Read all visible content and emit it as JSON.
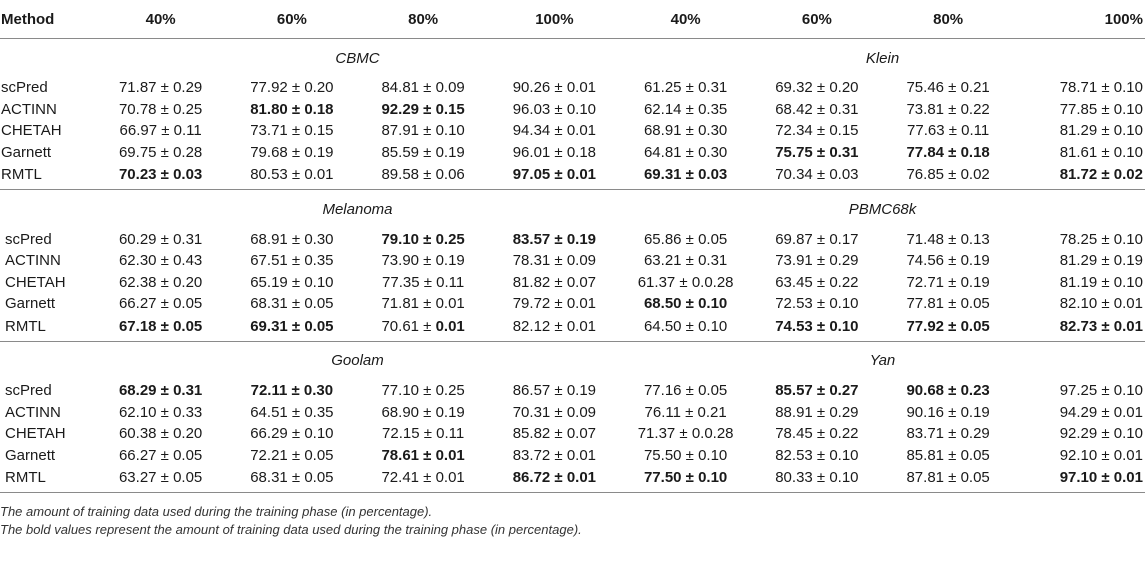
{
  "headers": [
    "Method",
    "40%",
    "60%",
    "80%",
    "100%",
    "40%",
    "60%",
    "80%",
    "100%"
  ],
  "sections": [
    {
      "left_dataset": "CBMC",
      "right_dataset": "Klein",
      "rows": [
        {
          "method": "scPred",
          "cells": [
            {
              "v": "71.87 ± 0.29",
              "b": false
            },
            {
              "v": "77.92 ± 0.20",
              "b": false
            },
            {
              "v": "84.81 ± 0.09",
              "b": false
            },
            {
              "v": "90.26 ± 0.01",
              "b": false
            },
            {
              "v": "61.25 ± 0.31",
              "b": false
            },
            {
              "v": "69.32 ± 0.20",
              "b": false
            },
            {
              "v": "75.46 ± 0.21",
              "b": false
            },
            {
              "v": "78.71 ± 0.10",
              "b": false
            }
          ]
        },
        {
          "method": "ACTINN",
          "cells": [
            {
              "v": "70.78 ± 0.25",
              "b": false
            },
            {
              "v": "81.80 ± 0.18",
              "b": true
            },
            {
              "v": "92.29 ± 0.15",
              "b": true
            },
            {
              "v": "96.03 ± 0.10",
              "b": false
            },
            {
              "v": "62.14 ± 0.35",
              "b": false
            },
            {
              "v": "68.42 ± 0.31",
              "b": false
            },
            {
              "v": "73.81 ± 0.22",
              "b": false
            },
            {
              "v": "77.85 ± 0.10",
              "b": false
            }
          ]
        },
        {
          "method": "CHETAH",
          "cells": [
            {
              "v": "66.97 ± 0.11",
              "b": false
            },
            {
              "v": "73.71 ± 0.15",
              "b": false
            },
            {
              "v": "87.91 ± 0.10",
              "b": false
            },
            {
              "v": "94.34 ± 0.01",
              "b": false
            },
            {
              "v": "68.91 ± 0.30",
              "b": false
            },
            {
              "v": "72.34 ± 0.15",
              "b": false
            },
            {
              "v": "77.63 ± 0.11",
              "b": false
            },
            {
              "v": "81.29 ± 0.10",
              "b": false
            }
          ]
        },
        {
          "method": "Garnett",
          "cells": [
            {
              "v": "69.75 ± 0.28",
              "b": false
            },
            {
              "v": "79.68 ± 0.19",
              "b": false
            },
            {
              "v": "85.59 ± 0.19",
              "b": false
            },
            {
              "v": "96.01 ± 0.18",
              "b": false
            },
            {
              "v": "64.81 ± 0.30",
              "b": false
            },
            {
              "v": "75.75 ± 0.31",
              "b": true
            },
            {
              "v": "77.84 ± 0.18",
              "b": true
            },
            {
              "v": "81.61 ± 0.10",
              "b": false
            }
          ]
        },
        {
          "method": "RMTL",
          "cells": [
            {
              "v": "70.23 ± 0.03",
              "b": true
            },
            {
              "v": "80.53 ± 0.01",
              "b": false
            },
            {
              "v": "89.58 ± 0.06",
              "b": false
            },
            {
              "v": "97.05 ± 0.01",
              "b": true
            },
            {
              "v": "69.31 ± 0.03",
              "b": true
            },
            {
              "v": "70.34 ± 0.03",
              "b": false
            },
            {
              "v": "76.85 ± 0.02",
              "b": false
            },
            {
              "v": "81.72 ± 0.02",
              "b": true
            }
          ]
        }
      ]
    },
    {
      "left_dataset": "Melanoma",
      "right_dataset": "PBMC68k",
      "rows": [
        {
          "method": "scPred",
          "cells": [
            {
              "v": "60.29 ± 0.31",
              "b": false
            },
            {
              "v": "68.91 ± 0.30",
              "b": false
            },
            {
              "v": "79.10 ± 0.25",
              "b": true
            },
            {
              "v": "83.57 ± 0.19",
              "b": true
            },
            {
              "v": "65.86 ± 0.05",
              "b": false
            },
            {
              "v": "69.87 ± 0.17",
              "b": false
            },
            {
              "v": "71.48 ± 0.13",
              "b": false
            },
            {
              "v": "78.25 ± 0.10",
              "b": false
            }
          ]
        },
        {
          "method": "ACTINN",
          "cells": [
            {
              "v": "62.30 ± 0.43",
              "b": false
            },
            {
              "v": "67.51 ± 0.35",
              "b": false
            },
            {
              "v": "73.90 ± 0.19",
              "b": false
            },
            {
              "v": "78.31 ± 0.09",
              "b": false
            },
            {
              "v": "63.21 ± 0.31",
              "b": false
            },
            {
              "v": "73.91 ± 0.29",
              "b": false
            },
            {
              "v": "74.56 ± 0.19",
              "b": false
            },
            {
              "v": "81.29 ± 0.19",
              "b": false
            }
          ]
        },
        {
          "method": "CHETAH",
          "cells": [
            {
              "v": "62.38 ± 0.20",
              "b": false
            },
            {
              "v": "65.19 ± 0.10",
              "b": false
            },
            {
              "v": "77.35 ± 0.11",
              "b": false
            },
            {
              "v": "81.82 ± 0.07",
              "b": false
            },
            {
              "v": "61.37 ± 0.0.28",
              "b": false
            },
            {
              "v": "63.45 ± 0.22",
              "b": false
            },
            {
              "v": "72.71 ± 0.19",
              "b": false
            },
            {
              "v": "81.19 ± 0.10",
              "b": false
            }
          ]
        },
        {
          "method": "Garnett",
          "cells": [
            {
              "v": "66.27 ± 0.05",
              "b": false
            },
            {
              "v": "68.31 ± 0.05",
              "b": false
            },
            {
              "v": "71.81 ± 0.01",
              "b": false
            },
            {
              "v": "79.72 ± 0.01",
              "b": false
            },
            {
              "v": "68.50 ± 0.10",
              "b": true
            },
            {
              "v": "72.53 ± 0.10",
              "b": false
            },
            {
              "v": "77.81 ± 0.05",
              "b": false
            },
            {
              "v": "82.10 ± 0.01",
              "b": false
            }
          ]
        },
        {
          "method": "RMTL",
          "cells": [
            {
              "v": "67.18 ± 0.05",
              "b": true
            },
            {
              "v": "69.31 ± 0.05",
              "b": true
            },
            {
              "v": "70.61 ± ",
              "v2": "0.01",
              "b": false,
              "partial": true
            },
            {
              "v": "82.12 ± 0.01",
              "b": false
            },
            {
              "v": "64.50 ± 0.10",
              "b": false
            },
            {
              "v": "74.53 ± 0.10",
              "b": true
            },
            {
              "v": "77.92 ± 0.05",
              "b": true
            },
            {
              "v": "82.73 ± 0.01",
              "b": true
            }
          ]
        }
      ]
    },
    {
      "left_dataset": "Goolam",
      "right_dataset": "Yan",
      "rows": [
        {
          "method": "scPred",
          "cells": [
            {
              "v": "68.29 ± 0.31",
              "b": true
            },
            {
              "v": "72.11 ± 0.30",
              "b": true
            },
            {
              "v": "77.10 ± 0.25",
              "b": false
            },
            {
              "v": "86.57 ± 0.19",
              "b": false
            },
            {
              "v": "77.16 ± 0.05",
              "b": false
            },
            {
              "v": "85.57 ± 0.27",
              "b": true
            },
            {
              "v": "90.68 ± 0.23",
              "b": true
            },
            {
              "v": "97.25 ± 0.10",
              "b": false
            }
          ]
        },
        {
          "method": "ACTINN",
          "cells": [
            {
              "v": "62.10 ± 0.33",
              "b": false
            },
            {
              "v": "64.51 ± 0.35",
              "b": false
            },
            {
              "v": "68.90 ± 0.19",
              "b": false
            },
            {
              "v": "70.31 ± 0.09",
              "b": false
            },
            {
              "v": "76.11 ± 0.21",
              "b": false
            },
            {
              "v": "88.91 ± 0.29",
              "b": false
            },
            {
              "v": "90.16 ± 0.19",
              "b": false
            },
            {
              "v": "94.29 ± 0.01",
              "b": false
            }
          ]
        },
        {
          "method": "CHETAH",
          "cells": [
            {
              "v": "60.38 ± 0.20",
              "b": false
            },
            {
              "v": "66.29 ± 0.10",
              "b": false
            },
            {
              "v": "72.15 ± 0.11",
              "b": false
            },
            {
              "v": "85.82 ± 0.07",
              "b": false
            },
            {
              "v": "71.37 ± 0.0.28",
              "b": false
            },
            {
              "v": "78.45 ± 0.22",
              "b": false
            },
            {
              "v": "83.71 ± 0.29",
              "b": false
            },
            {
              "v": "92.29 ± 0.10",
              "b": false
            }
          ]
        },
        {
          "method": "Garnett",
          "cells": [
            {
              "v": "66.27 ± 0.05",
              "b": false
            },
            {
              "v": "72.21 ± 0.05",
              "b": false
            },
            {
              "v": "78.61 ± 0.01",
              "b": true
            },
            {
              "v": "83.72 ± 0.01",
              "b": false
            },
            {
              "v": "75.50 ± 0.10",
              "b": false
            },
            {
              "v": "82.53 ± 0.10",
              "b": false
            },
            {
              "v": "85.81 ± 0.05",
              "b": false
            },
            {
              "v": "92.10 ± 0.01",
              "b": false
            }
          ]
        },
        {
          "method": "RMTL",
          "cells": [
            {
              "v": "63.27 ± 0.05",
              "b": false
            },
            {
              "v": "68.31 ± 0.05",
              "b": false
            },
            {
              "v": "72.41 ± 0.01",
              "b": false
            },
            {
              "v": "86.72 ± 0.01",
              "b": true
            },
            {
              "v": "77.50 ± 0.10",
              "b": true
            },
            {
              "v": "80.33 ± 0.10",
              "b": false
            },
            {
              "v": "87.81 ± 0.05",
              "b": false
            },
            {
              "v": "97.10 ± 0.01",
              "b": true
            }
          ]
        }
      ]
    }
  ],
  "notes": [
    "The amount of training data used during the training phase (in percentage).",
    "The bold values represent the amount of training data used during the training phase (in percentage)."
  ]
}
